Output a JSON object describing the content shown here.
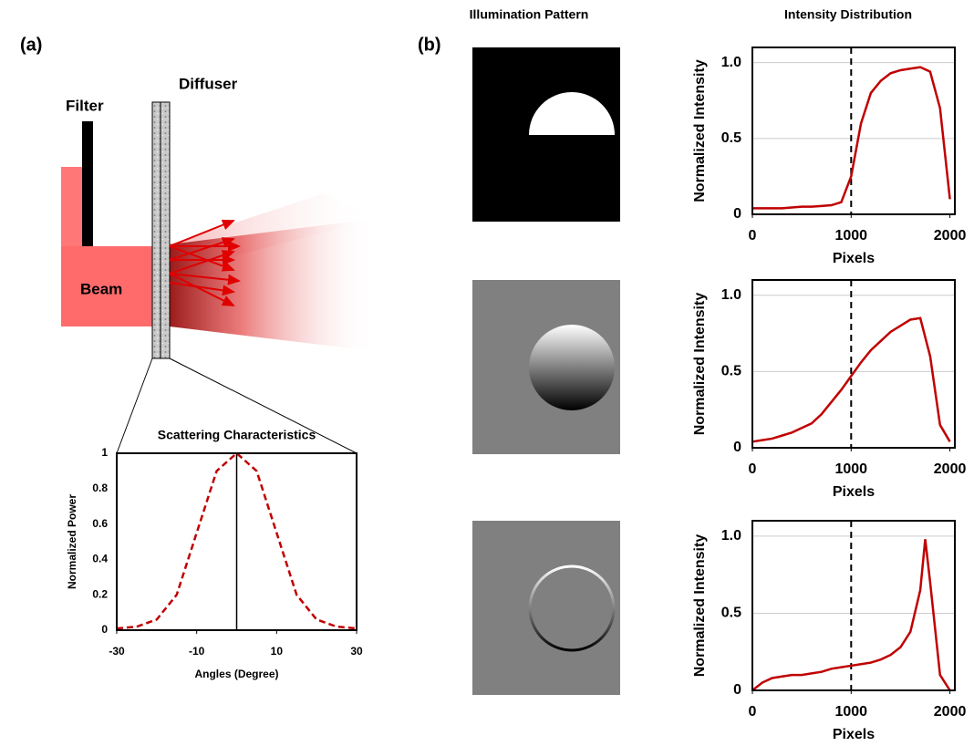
{
  "figure": {
    "panel_a": "(a)",
    "panel_b": "(b)",
    "filter": "Filter",
    "diffuser": "Diffuser",
    "beam": "Beam",
    "col_pattern": "Illumination Pattern",
    "col_intensity": "Intensity Distribution"
  },
  "chart_data": [
    {
      "type": "line",
      "title": "Scattering Characteristics",
      "x_label": "Angles (Degree)",
      "y_label": "Normalized Power",
      "x": [
        -30,
        -25,
        -20,
        -15,
        -10,
        -5,
        0,
        5,
        10,
        15,
        20,
        25,
        30
      ],
      "series": [
        {
          "color": "#c00000",
          "values": [
            0.01,
            0.02,
            0.06,
            0.2,
            0.55,
            0.9,
            1,
            0.9,
            0.55,
            0.2,
            0.06,
            0.02,
            0.01
          ]
        }
      ],
      "line_style": "dashed",
      "xlim": [
        -30,
        30
      ],
      "xticks": [
        -30,
        -10,
        10,
        30
      ],
      "ylim": [
        0,
        1
      ],
      "yticks": [
        0,
        0.2,
        0.4,
        0.6,
        0.8,
        1
      ],
      "grid": false
    },
    {
      "type": "line",
      "x_label": "Pixels",
      "y_label": "Normalized Intensity",
      "x": [
        0,
        100,
        200,
        300,
        400,
        500,
        600,
        700,
        800,
        900,
        1000,
        1100,
        1200,
        1300,
        1400,
        1500,
        1600,
        1700,
        1800,
        1900,
        2000
      ],
      "series": [
        {
          "color": "#c00000",
          "values": [
            0.04,
            0.04,
            0.04,
            0.04,
            0.045,
            0.05,
            0.05,
            0.055,
            0.06,
            0.08,
            0.25,
            0.6,
            0.8,
            0.88,
            0.93,
            0.95,
            0.96,
            0.97,
            0.94,
            0.7,
            0.1
          ]
        }
      ],
      "line_style": "solid",
      "reference_line": 1000,
      "xlim": [
        0,
        2050
      ],
      "xticks": [
        0,
        1000,
        2000
      ],
      "ylim": [
        0,
        1.1
      ],
      "yticks": [
        0,
        0.5,
        {
          "value": 1,
          "label": "1.0"
        }
      ],
      "grid": true
    },
    {
      "type": "line",
      "x_label": "Pixels",
      "y_label": "Normalized Intensity",
      "x": [
        0,
        100,
        200,
        300,
        400,
        500,
        600,
        700,
        800,
        900,
        1000,
        1100,
        1200,
        1300,
        1400,
        1500,
        1600,
        1700,
        1800,
        1900,
        2000
      ],
      "series": [
        {
          "color": "#c00000",
          "values": [
            0.04,
            0.05,
            0.06,
            0.08,
            0.1,
            0.13,
            0.16,
            0.22,
            0.3,
            0.38,
            0.47,
            0.56,
            0.64,
            0.7,
            0.76,
            0.8,
            0.84,
            0.85,
            0.6,
            0.15,
            0.04
          ]
        }
      ],
      "line_style": "solid",
      "reference_line": 1000,
      "xlim": [
        0,
        2050
      ],
      "xticks": [
        0,
        1000,
        2000
      ],
      "ylim": [
        0,
        1.1
      ],
      "yticks": [
        0,
        0.5,
        {
          "value": 1,
          "label": "1.0"
        }
      ],
      "grid": true
    },
    {
      "type": "line",
      "x_label": "Pixels",
      "y_label": "Normalized Intensity",
      "x": [
        0,
        100,
        200,
        300,
        400,
        500,
        600,
        700,
        800,
        900,
        1000,
        1100,
        1200,
        1300,
        1400,
        1500,
        1600,
        1700,
        1750,
        1800,
        1900,
        2000
      ],
      "series": [
        {
          "color": "#c00000",
          "values": [
            0,
            0.05,
            0.08,
            0.09,
            0.1,
            0.1,
            0.11,
            0.12,
            0.14,
            0.15,
            0.16,
            0.17,
            0.18,
            0.2,
            0.23,
            0.28,
            0.38,
            0.65,
            0.98,
            0.7,
            0.1,
            0
          ]
        }
      ],
      "line_style": "solid",
      "reference_line": 1000,
      "xlim": [
        0,
        2050
      ],
      "xticks": [
        0,
        1000,
        2000
      ],
      "ylim": [
        0,
        1.1
      ],
      "yticks": [
        0,
        0.5,
        {
          "value": 1,
          "label": "1.0"
        }
      ],
      "grid": true
    }
  ]
}
